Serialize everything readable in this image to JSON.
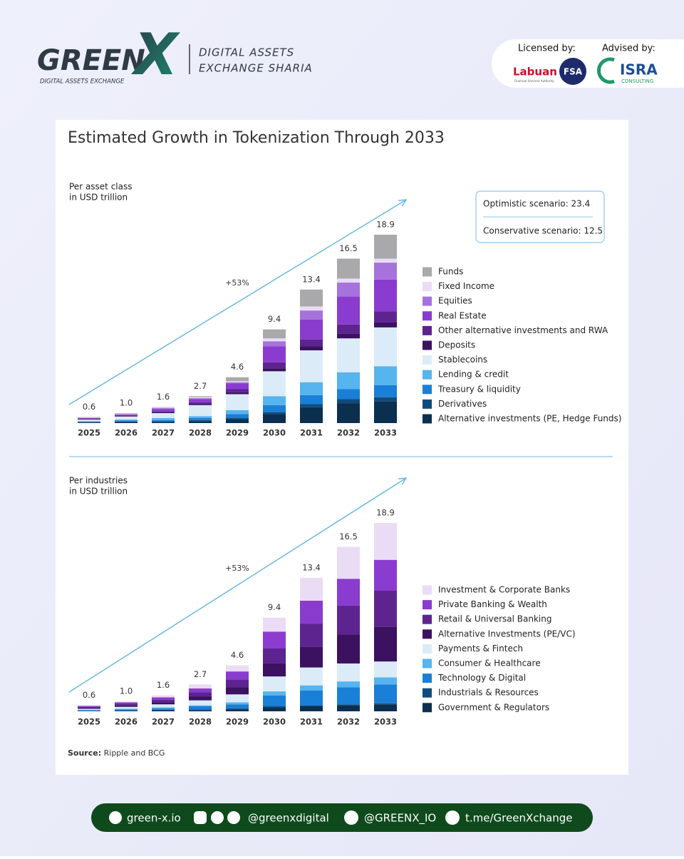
{
  "header": {
    "logo_main": "GREEN",
    "logo_mark": "X",
    "logo_tagline": "DIGITAL ASSETS EXCHANGE",
    "tagline_1": "DIGITAL ASSETS",
    "tagline_2": "EXCHANGE SHARIA",
    "licensed_by": "Licensed by:",
    "licensor": "Labuan",
    "licensor_mark": "FSA",
    "licensor_sub": "Financial Services Authority",
    "advised_by": "Advised by:",
    "advisor": "ISRA",
    "advisor_sub": "CONSULTING"
  },
  "title": "Estimated Growth in Tokenization Through 2033",
  "source_label": "Source:",
  "source": "Ripple and BCG",
  "footer": {
    "links": [
      "green-x.io",
      "@greenxdigital",
      "@GREENX_IO",
      "t.me/GreenXchange"
    ]
  },
  "chart_data": [
    {
      "type": "stacked_bar",
      "subtitle_1": "Per asset class",
      "subtitle_2": "in USD trillion",
      "annotation": "+53%",
      "scenarios": [
        "Optimistic scenario: 23.4",
        "Conservative scenario: 12.5"
      ],
      "categories": [
        "2025",
        "2026",
        "2027",
        "2028",
        "2029",
        "2030",
        "2031",
        "2032",
        "2033"
      ],
      "totals": [
        0.6,
        1.0,
        1.6,
        2.7,
        4.6,
        9.4,
        13.4,
        16.5,
        18.9
      ],
      "total_labels": [
        "0.6",
        "1.0",
        "1.6",
        "2.7",
        "4.6",
        "9.4",
        "13.4",
        "16.5",
        "18.9"
      ],
      "series": [
        {
          "name": "Alternative investments (PE, Hedge Funds)",
          "color": "#0b2f4f",
          "values": [
            0.05,
            0.1,
            0.1,
            0.2,
            0.4,
            0.9,
            1.6,
            2.0,
            2.2
          ]
        },
        {
          "name": "Derivatives",
          "color": "#0f4c7d",
          "values": [
            0.05,
            0.05,
            0.1,
            0.1,
            0.1,
            0.2,
            0.3,
            0.4,
            0.4
          ]
        },
        {
          "name": "Treasury & liquidity",
          "color": "#1a7fd6",
          "values": [
            0.05,
            0.1,
            0.1,
            0.2,
            0.4,
            0.7,
            0.9,
            1.0,
            1.2
          ]
        },
        {
          "name": "Lending & credit",
          "color": "#56b4ee",
          "values": [
            0.05,
            0.1,
            0.2,
            0.2,
            0.4,
            0.9,
            1.3,
            1.7,
            1.9
          ]
        },
        {
          "name": "Stablecoins",
          "color": "#dcebf8",
          "values": [
            0.15,
            0.3,
            0.5,
            1.1,
            1.6,
            2.5,
            3.2,
            3.4,
            3.9
          ]
        },
        {
          "name": "Deposits",
          "color": "#3b1160",
          "values": [
            0.05,
            0.05,
            0.1,
            0.1,
            0.2,
            0.3,
            0.4,
            0.5,
            0.5
          ]
        },
        {
          "name": "Other alternative investments and RWA",
          "color": "#5d2490",
          "values": [
            0.05,
            0.05,
            0.1,
            0.2,
            0.3,
            0.6,
            0.7,
            0.9,
            1.1
          ]
        },
        {
          "name": "Real Estate",
          "color": "#8a3ccf",
          "values": [
            0.05,
            0.1,
            0.2,
            0.3,
            0.6,
            1.6,
            2.0,
            2.8,
            3.2
          ]
        },
        {
          "name": "Equities",
          "color": "#a672dc",
          "values": [
            0.03,
            0.05,
            0.1,
            0.1,
            0.1,
            0.5,
            0.9,
            1.4,
            1.7
          ]
        },
        {
          "name": "Fixed Income",
          "color": "#eadcf5",
          "values": [
            0.03,
            0.05,
            0.05,
            0.1,
            0.1,
            0.3,
            0.4,
            0.4,
            0.4
          ]
        },
        {
          "name": "Funds",
          "color": "#a9a9ab",
          "values": [
            0.04,
            0.05,
            0.05,
            0.1,
            0.4,
            0.9,
            1.7,
            2.0,
            2.4
          ]
        }
      ]
    },
    {
      "type": "stacked_bar",
      "subtitle_1": "Per industries",
      "subtitle_2": "in USD trillion",
      "annotation": "+53%",
      "categories": [
        "2025",
        "2026",
        "2027",
        "2028",
        "2029",
        "2030",
        "2031",
        "2032",
        "2033"
      ],
      "totals": [
        0.6,
        1.0,
        1.6,
        2.7,
        4.6,
        9.4,
        13.4,
        16.5,
        18.9
      ],
      "total_labels": [
        "0.6",
        "1.0",
        "1.6",
        "2.7",
        "4.6",
        "9.4",
        "13.4",
        "16.5",
        "18.9"
      ],
      "series": [
        {
          "name": "Government & Regulators",
          "color": "#0b2f4f",
          "values": [
            0.03,
            0.05,
            0.1,
            0.1,
            0.2,
            0.4,
            0.5,
            0.6,
            0.7
          ]
        },
        {
          "name": "Industrials & Resources",
          "color": "#0f4c7d",
          "values": [
            0.03,
            0.05,
            0.05,
            0.1,
            0.1,
            0.1,
            0.1,
            0.1,
            0.1
          ]
        },
        {
          "name": "Technology & Digital",
          "color": "#1a7fd6",
          "values": [
            0.06,
            0.1,
            0.15,
            0.3,
            0.4,
            1.1,
            1.5,
            1.7,
            1.9
          ]
        },
        {
          "name": "Consumer & Healthcare",
          "color": "#56b4ee",
          "values": [
            0.03,
            0.05,
            0.1,
            0.1,
            0.2,
            0.4,
            0.5,
            0.6,
            0.7
          ]
        },
        {
          "name": "Payments & Fintech",
          "color": "#dcebf8",
          "values": [
            0.1,
            0.2,
            0.3,
            0.5,
            0.8,
            1.5,
            1.8,
            1.8,
            1.6
          ]
        },
        {
          "name": "Alternative Investments (PE/VC)",
          "color": "#3b1160",
          "values": [
            0.1,
            0.15,
            0.2,
            0.4,
            0.7,
            1.3,
            2.1,
            2.9,
            3.5
          ]
        },
        {
          "name": "Retail & Universal Banking",
          "color": "#5d2490",
          "values": [
            0.1,
            0.15,
            0.25,
            0.4,
            0.8,
            1.5,
            2.3,
            2.9,
            3.6
          ]
        },
        {
          "name": "Private Banking & Wealth",
          "color": "#8a3ccf",
          "values": [
            0.1,
            0.15,
            0.25,
            0.4,
            0.8,
            1.7,
            2.3,
            2.7,
            3.1
          ]
        },
        {
          "name": "Investment & Corporate Banks",
          "color": "#eadcf5",
          "values": [
            0.05,
            0.1,
            0.2,
            0.4,
            0.6,
            1.4,
            2.3,
            3.2,
            3.7
          ]
        }
      ]
    }
  ]
}
